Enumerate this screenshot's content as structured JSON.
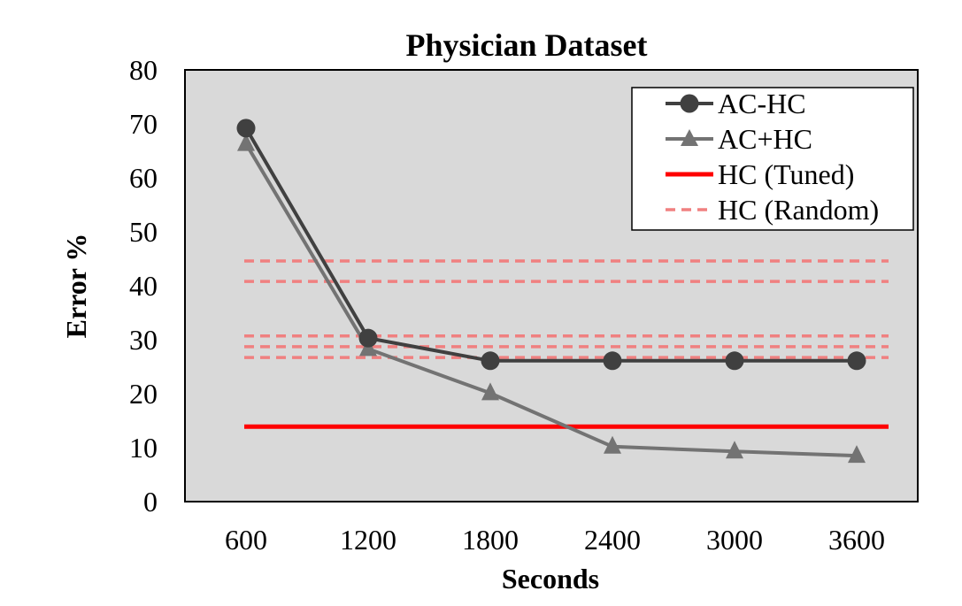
{
  "chart_data": {
    "type": "line",
    "title": "Physician Dataset",
    "xlabel": "Seconds",
    "ylabel": "Error %",
    "categories": [
      "600",
      "1200",
      "1800",
      "2400",
      "3000",
      "3600"
    ],
    "ylim": [
      0,
      80
    ],
    "yticks": [
      0,
      10,
      20,
      30,
      40,
      50,
      60,
      70,
      80
    ],
    "grid": false,
    "legend_position": "top-right",
    "plot_background": "#d9d9d9",
    "series": [
      {
        "name": "AC-HC",
        "values": [
          69.2,
          30.3,
          26.1,
          26.1,
          26.1,
          26.1
        ],
        "color": "#404040",
        "marker": "circle",
        "style": "solid"
      },
      {
        "name": "AC+HC",
        "values": [
          66.3,
          28.3,
          20.1,
          10.2,
          9.3,
          8.5
        ],
        "color": "#737373",
        "marker": "triangle",
        "style": "solid"
      },
      {
        "name": "HC (Tuned)",
        "values": [
          13.9,
          13.9,
          13.9,
          13.9,
          13.9,
          13.9
        ],
        "color": "#ff0000",
        "marker": "none",
        "style": "solid"
      },
      {
        "name": "HC (Random)",
        "values": [
          44.6,
          44.6,
          44.6,
          44.6,
          44.6,
          44.6
        ],
        "color": "#f08080",
        "marker": "none",
        "style": "dashed"
      },
      {
        "name": "",
        "values": [
          40.8,
          40.8,
          40.8,
          40.8,
          40.8,
          40.8
        ],
        "color": "#f08080",
        "marker": "none",
        "style": "dashed"
      },
      {
        "name": "",
        "values": [
          30.7,
          30.7,
          30.7,
          30.7,
          30.7,
          30.7
        ],
        "color": "#f08080",
        "marker": "none",
        "style": "dashed"
      },
      {
        "name": "",
        "values": [
          28.7,
          28.7,
          28.7,
          28.7,
          28.7,
          28.7
        ],
        "color": "#f08080",
        "marker": "none",
        "style": "dashed"
      },
      {
        "name": "",
        "values": [
          26.7,
          26.7,
          26.7,
          26.7,
          26.7,
          26.7
        ],
        "color": "#f08080",
        "marker": "none",
        "style": "dashed"
      }
    ]
  }
}
